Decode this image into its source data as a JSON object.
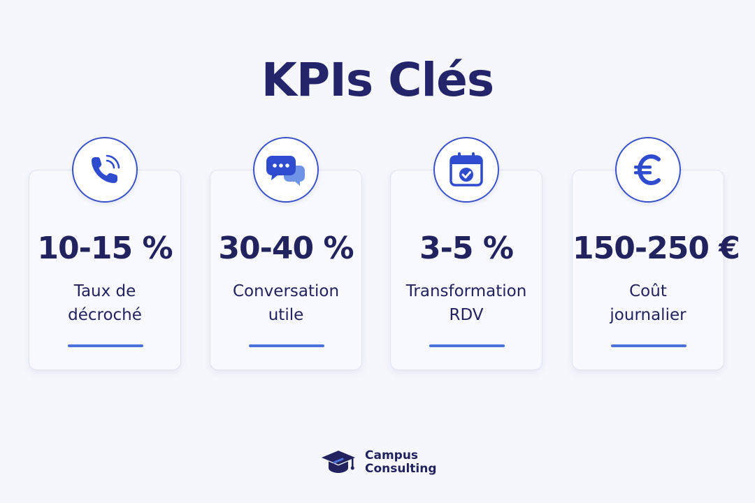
{
  "title": "KPIs Clés",
  "kpis": [
    {
      "icon": "phone-icon",
      "value": "10-15 %",
      "label": "Taux de\ndécroché"
    },
    {
      "icon": "chat-bubbles-icon",
      "value": "30-40 %",
      "label": "Conversation\nutile"
    },
    {
      "icon": "calendar-check-icon",
      "value": "3-5 %",
      "label": "Transformation\nRDV"
    },
    {
      "icon": "euro-icon",
      "value": "150-250 €",
      "label": "Coût\njournalier"
    }
  ],
  "brand": {
    "icon": "graduation-cap-icon",
    "line1": "Campus",
    "line2": "Consulting"
  },
  "colors": {
    "background": "#f5f7fc",
    "text": "#22225f",
    "accent": "#3b52c6",
    "bar": "#4a72d9"
  }
}
